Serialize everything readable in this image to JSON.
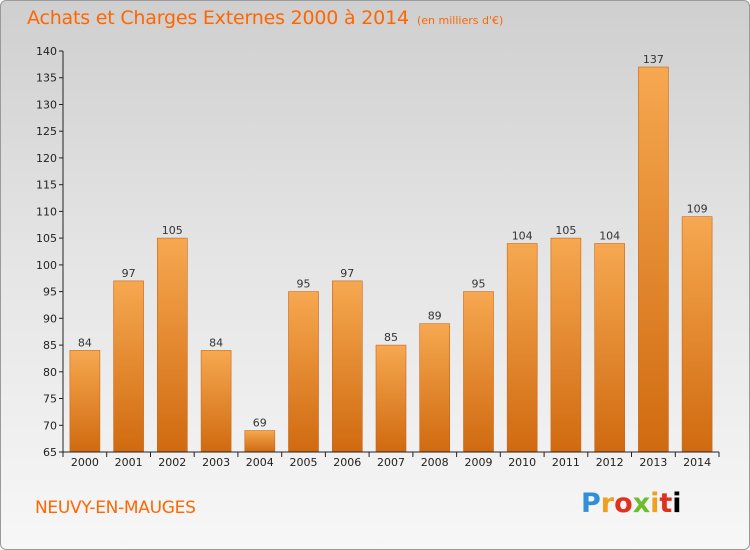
{
  "header": {
    "title": "Achats et Charges Externes 2000 à 2014",
    "subtitle": "(en milliers d'€)"
  },
  "footer": {
    "commune": "NEUVY-EN-MAUGES",
    "brand": "Proxiti"
  },
  "colors": {
    "accent": "#ff6600",
    "bar_light": "#f6a850",
    "bar_dark": "#d06a10",
    "axis": "#222222"
  },
  "chart_data": {
    "type": "bar",
    "title": "Achats et Charges Externes 2000 à 2014",
    "subtitle": "(en milliers d'€)",
    "xlabel": "",
    "ylabel": "",
    "categories": [
      "2000",
      "2001",
      "2002",
      "2003",
      "2004",
      "2005",
      "2006",
      "2007",
      "2008",
      "2009",
      "2010",
      "2011",
      "2012",
      "2013",
      "2014"
    ],
    "values": [
      84,
      97,
      105,
      84,
      69,
      95,
      97,
      85,
      89,
      95,
      104,
      105,
      104,
      137,
      109
    ],
    "ylim": [
      65,
      140
    ],
    "yticks": [
      65,
      70,
      75,
      80,
      85,
      90,
      95,
      100,
      105,
      110,
      115,
      120,
      125,
      130,
      135,
      140
    ],
    "grid": false,
    "legend": "none",
    "data_labels": true
  }
}
